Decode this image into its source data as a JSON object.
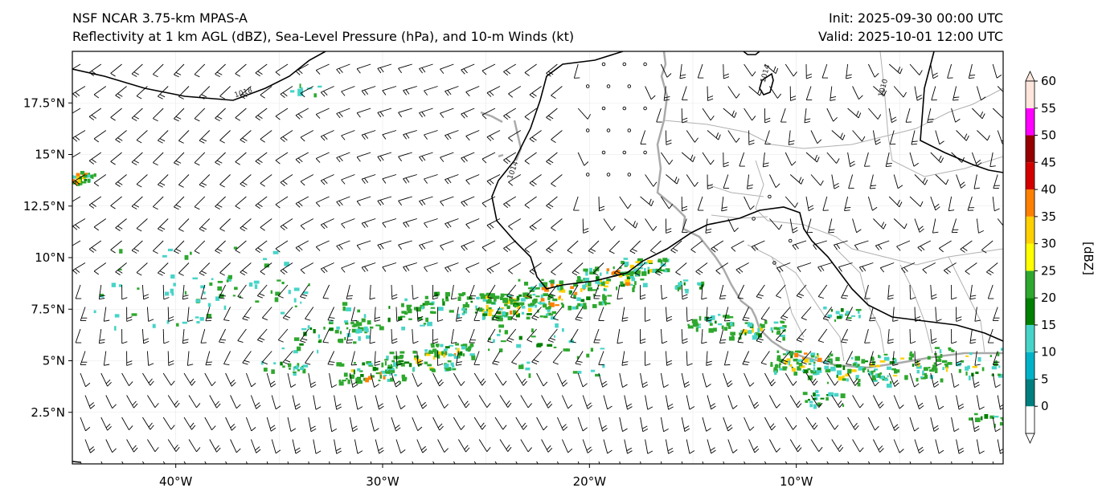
{
  "titles": {
    "left_line1": "NSF NCAR 3.75-km MPAS-A",
    "left_line2": "Reflectivity at 1 km AGL (dBZ), Sea-Level Pressure (hPa), and 10-m Winds (kt)",
    "right_line1": "Init: 2025-09-30 00:00 UTC",
    "right_line2": "Valid: 2025-10-01 12:00 UTC"
  },
  "map_extent": {
    "lon": [
      -45,
      0
    ],
    "lat": [
      0,
      20
    ]
  },
  "lat_ticks": [
    {
      "value": 2.5,
      "label": "2.5°N"
    },
    {
      "value": 5,
      "label": "5°N"
    },
    {
      "value": 7.5,
      "label": "7.5°N"
    },
    {
      "value": 10,
      "label": "10°N"
    },
    {
      "value": 12.5,
      "label": "12.5°N"
    },
    {
      "value": 15,
      "label": "15°N"
    },
    {
      "value": 17.5,
      "label": "17.5°N"
    }
  ],
  "lon_ticks": [
    {
      "value": -40,
      "label": "40°W"
    },
    {
      "value": -30,
      "label": "30°W"
    },
    {
      "value": -20,
      "label": "20°W"
    },
    {
      "value": -10,
      "label": "10°W"
    }
  ],
  "isobar_labels": [
    {
      "text": "1018",
      "lon": -36.7,
      "lat": 17.9
    },
    {
      "text": "1014",
      "lon": -23.6,
      "lat": 14.2
    },
    {
      "text": "1014",
      "lon": -11.4,
      "lat": 18.9
    },
    {
      "text": "1010",
      "lon": -5.7,
      "lat": 18.2
    }
  ],
  "colorbar": {
    "label": "[dBZ]",
    "ticks": [
      "0",
      "5",
      "10",
      "15",
      "20",
      "25",
      "30",
      "35",
      "40",
      "45",
      "50",
      "55",
      "60"
    ],
    "colors": [
      "#ffffff",
      "#007f7f",
      "#00b2c8",
      "#47d4c8",
      "#008000",
      "#2ea82e",
      "#ffff00",
      "#ffd000",
      "#ff8000",
      "#d40000",
      "#960000",
      "#ff00ff",
      "#ffe6dc"
    ]
  },
  "reflectivity_colors": {
    "light": "#47d4c8",
    "green": "#2ea82e",
    "darkgreen": "#008000",
    "yellow": "#ffd000",
    "orange": "#ff8000",
    "red": "#d40000"
  }
}
